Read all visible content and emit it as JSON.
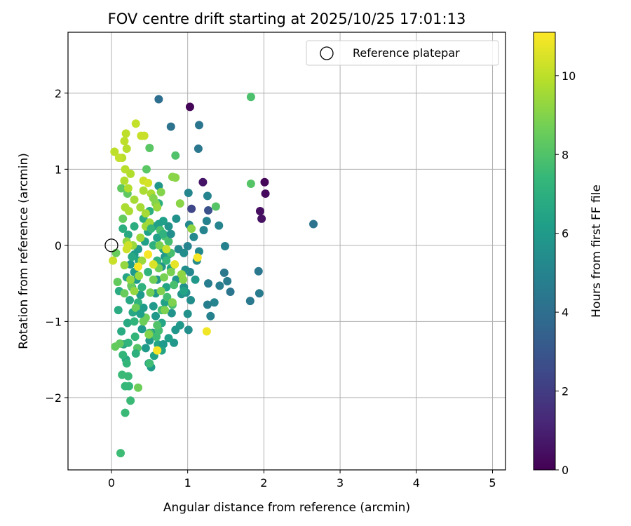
{
  "chart_data": {
    "type": "scatter",
    "title": "FOV centre drift starting at 2025/10/25 17:01:13",
    "xlabel": "Angular distance from reference (arcmin)",
    "ylabel": "Rotation from reference (arcmin)",
    "xlim": [
      -0.57,
      5.17
    ],
    "ylim": [
      -2.95,
      2.8
    ],
    "xticks": [
      0,
      1,
      2,
      3,
      4,
      5
    ],
    "xtick_labels": [
      "0",
      "1",
      "2",
      "3",
      "4",
      "5"
    ],
    "yticks": [
      -2,
      -1,
      0,
      1,
      2
    ],
    "ytick_labels": [
      "−2",
      "−1",
      "0",
      "1",
      "2"
    ],
    "grid": true,
    "legend": {
      "placement": "top-right",
      "entries": [
        "Reference platepar"
      ]
    },
    "reference_point": {
      "x": 0,
      "y": 0,
      "marker": "open-circle",
      "color": "#000000"
    },
    "colorbar": {
      "label": "Hours from first FF file",
      "range": [
        0,
        11.1
      ],
      "ticks": [
        0,
        2,
        4,
        6,
        8,
        10
      ],
      "tick_labels": [
        "0",
        "2",
        "4",
        "6",
        "8",
        "10"
      ],
      "colormap": "viridis",
      "stops": [
        "#440154",
        "#482878",
        "#3e4989",
        "#31688e",
        "#26828e",
        "#1f9e89",
        "#35b779",
        "#6ece58",
        "#b5de2b",
        "#fde725"
      ]
    },
    "series": [
      {
        "points": [
          [
            1.03,
            1.82,
            0.1
          ],
          [
            2.01,
            0.83,
            0.2
          ],
          [
            2.02,
            0.68,
            0.3
          ],
          [
            1.95,
            0.45,
            0.4
          ],
          [
            1.97,
            0.35,
            0.5
          ],
          [
            1.2,
            0.83,
            0.6
          ],
          [
            1.05,
            0.48,
            2.4
          ],
          [
            1.27,
            0.46,
            2.8
          ],
          [
            0.62,
            1.92,
            4.0
          ],
          [
            0.78,
            1.56,
            4.2
          ],
          [
            1.15,
            1.58,
            4.3
          ],
          [
            1.14,
            1.27,
            4.4
          ],
          [
            2.65,
            0.28,
            4.2
          ],
          [
            1.93,
            -0.34,
            4.4
          ],
          [
            1.94,
            -0.63,
            4.6
          ],
          [
            1.82,
            -0.73,
            4.5
          ],
          [
            1.56,
            -0.61,
            4.3
          ],
          [
            1.52,
            -0.47,
            4.6
          ],
          [
            1.48,
            -0.36,
            4.4
          ],
          [
            1.42,
            -0.53,
            4.7
          ],
          [
            1.35,
            -0.75,
            5.0
          ],
          [
            1.26,
            -0.78,
            4.8
          ],
          [
            1.3,
            -0.93,
            4.9
          ],
          [
            1.27,
            -0.5,
            4.7
          ],
          [
            1.49,
            -0.01,
            4.9
          ],
          [
            1.41,
            0.26,
            5.0
          ],
          [
            1.26,
            0.65,
            5.0
          ],
          [
            1.25,
            0.32,
            4.9
          ],
          [
            1.21,
            0.2,
            5.0
          ],
          [
            1.01,
            0.69,
            5.1
          ],
          [
            1.02,
            0.27,
            5.2
          ],
          [
            1.08,
            0.11,
            5.3
          ],
          [
            1.15,
            -0.08,
            5.2
          ],
          [
            1.12,
            -0.2,
            5.3
          ],
          [
            1.03,
            -0.35,
            5.1
          ],
          [
            1.0,
            -0.01,
            5.0
          ],
          [
            0.95,
            -0.1,
            5.4
          ],
          [
            0.88,
            -0.05,
            5.2
          ],
          [
            0.97,
            -0.32,
            5.4
          ],
          [
            0.95,
            -0.55,
            5.6
          ],
          [
            0.98,
            -0.62,
            5.5
          ],
          [
            1.04,
            -0.72,
            5.4
          ],
          [
            0.92,
            -0.64,
            5.7
          ],
          [
            1.01,
            -1.11,
            5.5
          ],
          [
            0.84,
            -1.11,
            5.8
          ],
          [
            0.82,
            -1.28,
            5.9
          ],
          [
            0.79,
            -0.89,
            5.7
          ],
          [
            0.85,
            -0.45,
            5.8
          ],
          [
            0.85,
            0.35,
            5.6
          ],
          [
            0.75,
            0.25,
            5.7
          ],
          [
            0.62,
            0.78,
            5.8
          ],
          [
            0.7,
            -0.15,
            5.9
          ],
          [
            0.66,
            -0.28,
            5.7
          ],
          [
            0.6,
            -0.45,
            5.8
          ],
          [
            0.58,
            -0.63,
            5.9
          ],
          [
            0.55,
            -0.8,
            6.0
          ],
          [
            0.58,
            -0.93,
            5.9
          ],
          [
            0.54,
            -1.15,
            5.8
          ],
          [
            0.5,
            -1.25,
            5.9
          ],
          [
            0.49,
            -1.55,
            5.9
          ],
          [
            0.52,
            -1.6,
            6.1
          ],
          [
            0.45,
            -1.35,
            6.0
          ],
          [
            0.4,
            -1.1,
            6.0
          ],
          [
            0.42,
            -0.82,
            6.1
          ],
          [
            0.38,
            -0.65,
            6.0
          ],
          [
            0.33,
            -0.45,
            6.1
          ],
          [
            0.3,
            -0.35,
            6.0
          ],
          [
            0.25,
            -0.25,
            6.0
          ],
          [
            0.3,
            -0.12,
            6.1
          ],
          [
            0.35,
            -0.05,
            6.0
          ],
          [
            0.44,
            0.05,
            6.2
          ],
          [
            0.48,
            0.18,
            6.2
          ],
          [
            0.55,
            0.25,
            6.1
          ],
          [
            0.62,
            0.28,
            6.3
          ],
          [
            0.68,
            0.32,
            6.2
          ],
          [
            0.6,
            0.1,
            6.3
          ],
          [
            0.68,
            -0.05,
            6.2
          ],
          [
            0.75,
            -0.12,
            6.3
          ],
          [
            0.78,
            -0.3,
            6.4
          ],
          [
            0.72,
            -0.55,
            6.4
          ],
          [
            0.7,
            -0.75,
            6.3
          ],
          [
            0.66,
            -1.02,
            6.5
          ],
          [
            0.61,
            -1.3,
            6.5
          ],
          [
            0.56,
            -1.45,
            6.4
          ],
          [
            0.36,
            -0.2,
            6.5
          ],
          [
            0.27,
            -0.55,
            6.6
          ],
          [
            0.2,
            -0.42,
            6.5
          ],
          [
            0.24,
            -0.72,
            6.6
          ],
          [
            0.28,
            -0.88,
            6.6
          ],
          [
            0.21,
            -1.02,
            6.7
          ],
          [
            0.16,
            -1.3,
            6.6
          ],
          [
            0.19,
            -1.5,
            6.7
          ],
          [
            0.27,
            -0.15,
            6.6
          ],
          [
            0.22,
            0.14,
            6.7
          ],
          [
            0.13,
            -1.13,
            6.8
          ],
          [
            0.1,
            -0.6,
            6.8
          ],
          [
            0.09,
            -0.85,
            6.8
          ],
          [
            0.15,
            0.22,
            6.9
          ],
          [
            0.3,
            0.25,
            6.9
          ],
          [
            0.42,
            0.35,
            6.8
          ],
          [
            0.5,
            0.45,
            7.0
          ],
          [
            0.62,
            0.55,
            7.0
          ],
          [
            0.55,
            0.0,
            7.0
          ],
          [
            0.6,
            -0.2,
            7.1
          ],
          [
            0.48,
            -0.35,
            7.2
          ],
          [
            0.4,
            -0.55,
            7.1
          ],
          [
            0.35,
            -0.75,
            7.2
          ],
          [
            0.3,
            -1.0,
            7.2
          ],
          [
            0.31,
            -1.2,
            7.3
          ],
          [
            0.22,
            -1.28,
            7.2
          ],
          [
            0.2,
            -1.55,
            7.3
          ],
          [
            0.15,
            -1.44,
            7.3
          ],
          [
            0.23,
            -1.85,
            7.4
          ],
          [
            0.18,
            -1.85,
            7.4
          ],
          [
            0.22,
            -1.72,
            7.5
          ],
          [
            0.14,
            -1.7,
            7.5
          ],
          [
            0.18,
            -2.2,
            7.5
          ],
          [
            0.25,
            -2.04,
            7.5
          ],
          [
            0.12,
            -2.73,
            7.6
          ],
          [
            0.5,
            -1.55,
            7.6
          ],
          [
            0.59,
            -1.2,
            7.6
          ],
          [
            0.62,
            -1.12,
            7.7
          ],
          [
            0.66,
            -0.85,
            7.7
          ],
          [
            0.73,
            -0.68,
            7.7
          ],
          [
            0.8,
            -0.78,
            7.8
          ],
          [
            0.82,
            -0.52,
            7.8
          ],
          [
            0.78,
            -0.1,
            7.8
          ],
          [
            0.75,
            0.05,
            7.8
          ],
          [
            0.7,
            0.12,
            7.9
          ],
          [
            0.64,
            0.2,
            7.9
          ],
          [
            1.83,
            1.95,
            7.9
          ],
          [
            1.83,
            0.81,
            8.1
          ],
          [
            1.37,
            0.51,
            8.1
          ],
          [
            0.5,
            1.28,
            8.2
          ],
          [
            0.46,
            1.0,
            8.2
          ],
          [
            0.13,
            0.75,
            8.3
          ],
          [
            0.21,
            0.68,
            8.3
          ],
          [
            0.15,
            0.35,
            8.4
          ],
          [
            0.11,
            -1.29,
            8.3
          ],
          [
            0.05,
            -1.33,
            8.4
          ],
          [
            0.08,
            -0.48,
            8.4
          ],
          [
            0.06,
            -0.1,
            8.5
          ],
          [
            0.17,
            -0.63,
            8.5
          ],
          [
            0.26,
            -0.53,
            8.5
          ],
          [
            0.32,
            -0.82,
            8.6
          ],
          [
            0.35,
            -1.87,
            8.6
          ],
          [
            0.42,
            -1.0,
            8.6
          ],
          [
            0.45,
            -0.95,
            8.6
          ],
          [
            0.51,
            -0.62,
            8.7
          ],
          [
            0.55,
            -0.45,
            8.7
          ],
          [
            0.62,
            -0.3,
            8.7
          ],
          [
            0.63,
            0.0,
            8.8
          ],
          [
            0.69,
            -0.42,
            8.8
          ],
          [
            0.78,
            -0.35,
            8.8
          ],
          [
            0.8,
            -0.75,
            8.9
          ],
          [
            0.7,
            -0.85,
            8.9
          ],
          [
            0.65,
            -0.6,
            8.9
          ],
          [
            0.58,
            0.55,
            9.0
          ],
          [
            0.65,
            0.7,
            9.0
          ],
          [
            0.8,
            0.9,
            9.1
          ],
          [
            0.84,
            0.89,
            9.1
          ],
          [
            0.9,
            0.55,
            9.1
          ],
          [
            0.94,
            -0.45,
            9.1
          ],
          [
            0.92,
            -0.38,
            9.2
          ],
          [
            1.05,
            0.22,
            9.2
          ],
          [
            0.2,
            0.05,
            9.2
          ],
          [
            0.17,
            -0.26,
            9.3
          ],
          [
            0.25,
            -0.45,
            9.3
          ],
          [
            0.3,
            -0.6,
            9.3
          ],
          [
            0.36,
            -0.4,
            9.4
          ],
          [
            0.4,
            -0.2,
            9.4
          ],
          [
            0.28,
            0.0,
            9.4
          ],
          [
            0.38,
            0.1,
            9.5
          ],
          [
            0.45,
            0.25,
            9.5
          ],
          [
            0.5,
            0.3,
            9.5
          ],
          [
            0.3,
            0.6,
            9.6
          ],
          [
            0.38,
            0.5,
            9.6
          ],
          [
            0.45,
            0.42,
            9.6
          ],
          [
            0.42,
            0.72,
            9.7
          ],
          [
            0.52,
            0.68,
            9.7
          ],
          [
            0.18,
            0.5,
            9.7
          ],
          [
            0.23,
            0.45,
            9.7
          ],
          [
            0.17,
            0.85,
            9.8
          ],
          [
            0.22,
            0.75,
            9.8
          ],
          [
            0.25,
            0.94,
            9.8
          ],
          [
            0.18,
            1.0,
            9.9
          ],
          [
            0.14,
            1.15,
            9.9
          ],
          [
            0.2,
            1.27,
            9.9
          ],
          [
            0.17,
            1.37,
            10.0
          ],
          [
            0.19,
            1.47,
            10.0
          ],
          [
            0.04,
            1.23,
            10.0
          ],
          [
            0.1,
            1.15,
            10.1
          ],
          [
            0.32,
            1.6,
            10.1
          ],
          [
            0.39,
            1.44,
            10.2
          ],
          [
            0.43,
            1.44,
            10.2
          ],
          [
            0.02,
            -0.2,
            10.2
          ],
          [
            0.2,
            -0.05,
            10.3
          ],
          [
            0.22,
            0.0,
            10.3
          ],
          [
            0.42,
            0.85,
            10.3
          ],
          [
            0.48,
            0.82,
            10.4
          ],
          [
            0.84,
            1.18,
            8.0
          ],
          [
            0.6,
            -1.05,
            8.0
          ],
          [
            0.5,
            -1.15,
            7.8
          ],
          [
            0.95,
            -0.6,
            6.4
          ],
          [
            1.1,
            -0.45,
            5.9
          ],
          [
            1.0,
            -0.9,
            5.6
          ],
          [
            0.9,
            -1.05,
            5.9
          ],
          [
            0.75,
            -1.22,
            6.2
          ],
          [
            0.68,
            -1.3,
            6.0
          ],
          [
            0.66,
            -1.38,
            6.4
          ],
          [
            0.35,
            -0.28,
            11.0
          ],
          [
            0.48,
            -0.12,
            11.0
          ],
          [
            1.13,
            -0.16,
            11.0
          ],
          [
            0.6,
            -1.38,
            11.0
          ],
          [
            1.25,
            -1.13,
            10.9
          ],
          [
            0.83,
            -0.25,
            10.7
          ],
          [
            0.49,
            -1.17,
            9.0
          ],
          [
            0.34,
            -1.35,
            8.1
          ],
          [
            0.32,
            -1.42,
            7.0
          ],
          [
            0.55,
            -0.25,
            10.5
          ],
          [
            0.72,
            -0.05,
            10.2
          ],
          [
            0.52,
            0.22,
            7.3
          ],
          [
            0.6,
            0.5,
            9.4
          ],
          [
            0.55,
            0.62,
            9.0
          ],
          [
            0.68,
            0.15,
            7.1
          ],
          [
            0.72,
            -0.2,
            7.4
          ],
          [
            0.78,
            0.15,
            5.5
          ],
          [
            0.38,
            -0.9,
            6.2
          ]
        ]
      }
    ]
  }
}
